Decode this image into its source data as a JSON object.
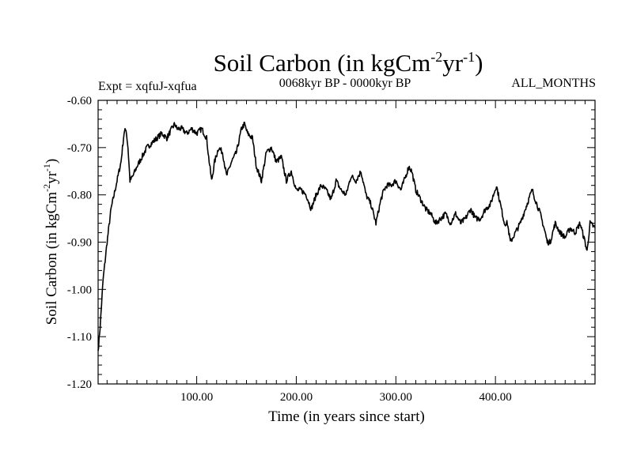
{
  "chart_data": {
    "type": "line",
    "title": {
      "main": "Soil Carbon (in kgCm",
      "sup1": "-2",
      "mid": "yr",
      "sup2": "-1",
      "end": ")"
    },
    "left_label": "Expt = xqfuJ-xqfua",
    "center_label": "0068kyr BP - 0000kyr BP",
    "right_label": "ALL_MONTHS",
    "xlabel": "Time (in years since start)",
    "ylabel": {
      "main": "Soil Carbon (in kgCm",
      "sup1": "-2",
      "mid": "yr",
      "sup2": "-1",
      "end": ")"
    },
    "xlim": [
      1,
      500
    ],
    "ylim": [
      -1.2,
      -0.6
    ],
    "x_ticks": [
      {
        "value": 100,
        "label": "100.00"
      },
      {
        "value": 200,
        "label": "200.00"
      },
      {
        "value": 300,
        "label": "300.00"
      },
      {
        "value": 400,
        "label": "400.00"
      }
    ],
    "y_ticks": [
      {
        "value": -0.6,
        "label": "-0.60"
      },
      {
        "value": -0.7,
        "label": "-0.70"
      },
      {
        "value": -0.8,
        "label": "-0.80"
      },
      {
        "value": -0.9,
        "label": "-0.90"
      },
      {
        "value": -1.0,
        "label": "-1.00"
      },
      {
        "value": -1.1,
        "label": "-1.10"
      },
      {
        "value": -1.2,
        "label": "-1.20"
      }
    ],
    "x_minor_step": 10,
    "y_minor_step": 0.02,
    "noise_amplitude": 0.006,
    "series": [
      {
        "name": "Soil Carbon",
        "color": "#000000",
        "x": [
          1,
          3,
          6,
          10,
          14,
          18,
          21,
          24,
          27,
          29,
          31,
          33,
          36,
          40,
          45,
          50,
          55,
          60,
          65,
          70,
          75,
          78,
          80,
          85,
          90,
          95,
          100,
          105,
          110,
          112,
          115,
          118,
          122,
          126,
          130,
          135,
          140,
          145,
          148,
          151,
          156,
          160,
          165,
          170,
          175,
          180,
          185,
          190,
          195,
          200,
          205,
          210,
          215,
          220,
          225,
          230,
          235,
          240,
          245,
          250,
          255,
          260,
          265,
          270,
          275,
          280,
          285,
          288,
          291,
          295,
          300,
          305,
          310,
          313,
          316,
          320,
          325,
          330,
          335,
          340,
          345,
          350,
          355,
          360,
          365,
          370,
          375,
          380,
          385,
          390,
          395,
          398,
          401,
          405,
          409,
          412,
          415,
          420,
          425,
          430,
          435,
          437,
          440,
          445,
          450,
          452,
          455,
          460,
          465,
          470,
          475,
          480,
          485,
          490,
          492,
          495,
          500
        ],
        "y": [
          -1.13,
          -1.08,
          -0.98,
          -0.9,
          -0.83,
          -0.79,
          -0.76,
          -0.73,
          -0.67,
          -0.66,
          -0.7,
          -0.77,
          -0.76,
          -0.74,
          -0.72,
          -0.7,
          -0.69,
          -0.68,
          -0.67,
          -0.68,
          -0.66,
          -0.65,
          -0.66,
          -0.66,
          -0.67,
          -0.66,
          -0.67,
          -0.66,
          -0.68,
          -0.72,
          -0.77,
          -0.73,
          -0.7,
          -0.71,
          -0.76,
          -0.73,
          -0.71,
          -0.66,
          -0.65,
          -0.67,
          -0.68,
          -0.74,
          -0.77,
          -0.71,
          -0.7,
          -0.73,
          -0.72,
          -0.77,
          -0.75,
          -0.79,
          -0.79,
          -0.8,
          -0.83,
          -0.8,
          -0.78,
          -0.79,
          -0.81,
          -0.77,
          -0.79,
          -0.8,
          -0.76,
          -0.77,
          -0.75,
          -0.8,
          -0.82,
          -0.86,
          -0.81,
          -0.79,
          -0.78,
          -0.78,
          -0.77,
          -0.79,
          -0.76,
          -0.74,
          -0.75,
          -0.79,
          -0.81,
          -0.83,
          -0.84,
          -0.86,
          -0.85,
          -0.84,
          -0.86,
          -0.84,
          -0.86,
          -0.85,
          -0.83,
          -0.85,
          -0.85,
          -0.83,
          -0.82,
          -0.8,
          -0.78,
          -0.82,
          -0.86,
          -0.86,
          -0.9,
          -0.88,
          -0.86,
          -0.83,
          -0.8,
          -0.79,
          -0.81,
          -0.84,
          -0.88,
          -0.9,
          -0.9,
          -0.86,
          -0.88,
          -0.89,
          -0.87,
          -0.88,
          -0.86,
          -0.9,
          -0.92,
          -0.86,
          -0.87
        ]
      }
    ]
  }
}
